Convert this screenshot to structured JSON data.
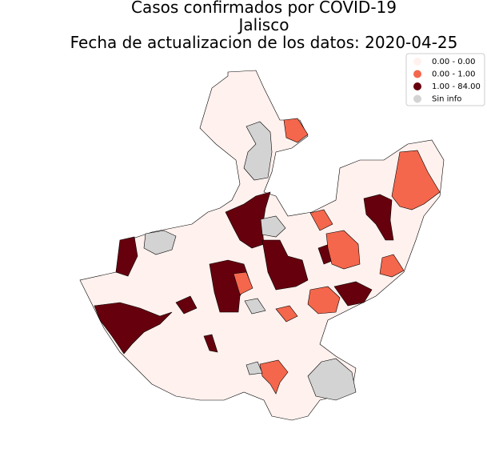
{
  "title": [
    "Casos confirmados por COVID-19",
    "Jalisco",
    "Fecha de actualizacion de los datos: 2020-04-25"
  ],
  "legend": {
    "items": [
      {
        "label": "0.00 - 0.00",
        "color": "#fff1ee"
      },
      {
        "label": "0.00 - 1.00",
        "color": "#f4674c"
      },
      {
        "label": "1.00 - 84.00",
        "color": "#67000d"
      },
      {
        "label": "Sin info",
        "color": "#d3d3d3"
      }
    ]
  }
}
